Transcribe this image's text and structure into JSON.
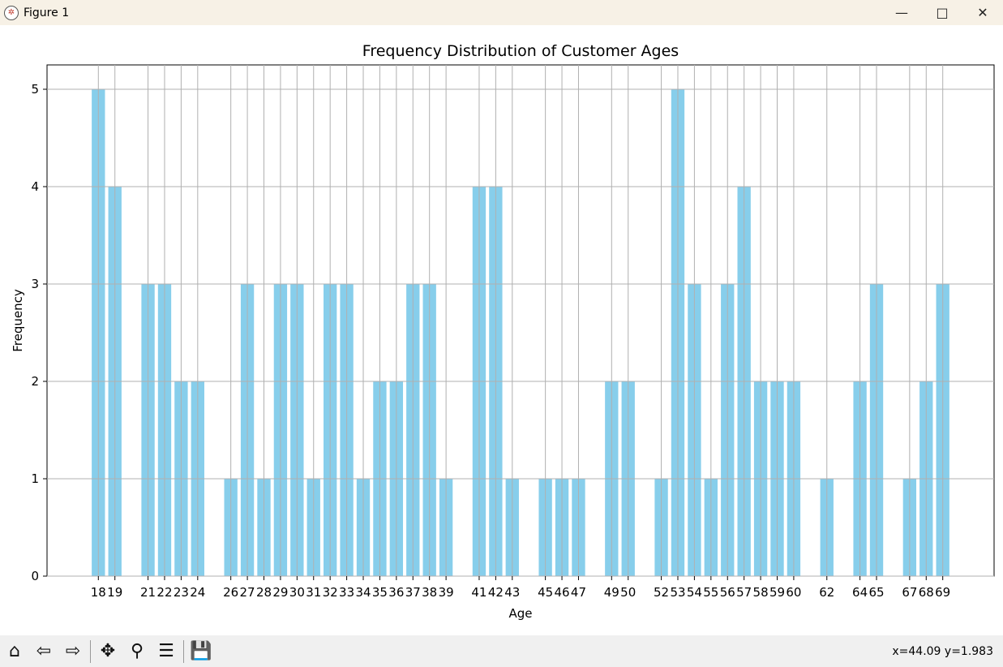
{
  "window": {
    "title": "Figure 1",
    "minimize_icon": "minimize-icon",
    "maximize_icon": "maximize-icon",
    "close_icon": "close-icon"
  },
  "toolbar": {
    "tools": [
      "home-icon",
      "back-arrow-icon",
      "forward-arrow-icon",
      "pan-icon",
      "zoom-icon",
      "configure-subplots-icon",
      "save-icon"
    ],
    "coords": "x=44.09 y=1.983"
  },
  "chart_data": {
    "type": "bar",
    "title": "Frequency Distribution of Customer Ages",
    "xlabel": "Age",
    "ylabel": "Frequency",
    "color": "#87ceeb",
    "grid": true,
    "ylim": [
      0,
      5.25
    ],
    "xlim": [
      14.9,
      72.1
    ],
    "yticks": [
      0,
      1,
      2,
      3,
      4,
      5
    ],
    "categories": [
      "18",
      "19",
      "21",
      "22",
      "23",
      "24",
      "26",
      "27",
      "28",
      "29",
      "30",
      "31",
      "32",
      "33",
      "34",
      "35",
      "36",
      "37",
      "38",
      "39",
      "41",
      "42",
      "43",
      "45",
      "46",
      "47",
      "49",
      "50",
      "52",
      "53",
      "54",
      "55",
      "56",
      "57",
      "58",
      "59",
      "60",
      "62",
      "64",
      "65",
      "67",
      "68",
      "69"
    ],
    "values": [
      5,
      4,
      3,
      3,
      2,
      2,
      1,
      3,
      1,
      3,
      3,
      1,
      3,
      3,
      1,
      2,
      2,
      3,
      3,
      1,
      4,
      4,
      1,
      1,
      1,
      1,
      2,
      2,
      1,
      5,
      3,
      1,
      3,
      4,
      2,
      2,
      2,
      1,
      2,
      3,
      1,
      2,
      3
    ]
  }
}
